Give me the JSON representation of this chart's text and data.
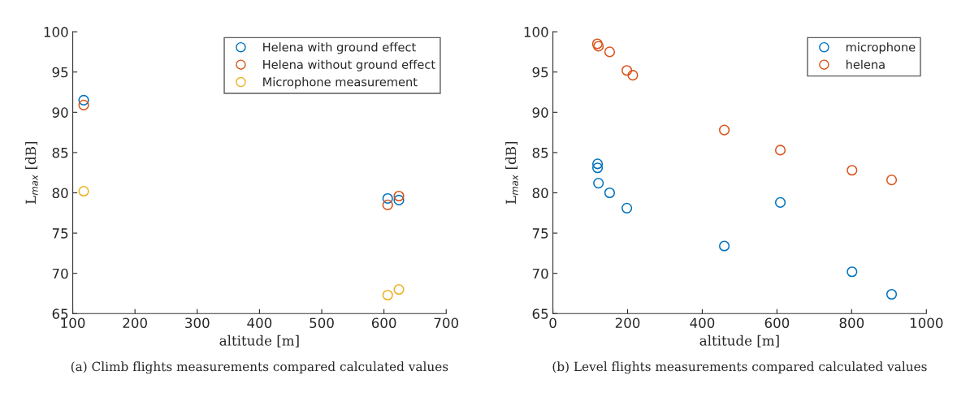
{
  "chart_data": [
    {
      "type": "scatter",
      "xlabel": "altitude [m]",
      "ylabel": "L$_{max}$ [dB]",
      "xlim": [
        100,
        700
      ],
      "xticks": [
        100,
        200,
        300,
        400,
        500,
        600,
        700
      ],
      "ylim": [
        65,
        100
      ],
      "yticks": [
        65,
        70,
        75,
        80,
        85,
        90,
        95,
        100
      ],
      "legend": "top right",
      "grid": false,
      "marker": "circle",
      "annotations": [
        "(a) Climb flights measurements compared calculated values"
      ],
      "series": [
        {
          "name": "Helena with ground effect",
          "color": "#0072bd",
          "x": [
            117.6,
            606,
            624
          ],
          "values": [
            91.5,
            79.3,
            79.1
          ]
        },
        {
          "name": "Helena without ground effect",
          "color": "#d95319",
          "x": [
            117.6,
            606,
            624
          ],
          "values": [
            90.9,
            78.5,
            79.6
          ]
        },
        {
          "name": "Microphone measurement",
          "color": "#edb120",
          "x": [
            117.6,
            606,
            624
          ],
          "values": [
            80.2,
            67.3,
            68.0
          ]
        }
      ]
    },
    {
      "type": "scatter",
      "xlabel": "altitude [m]",
      "ylabel": "L$_{max}$ [dB]",
      "xlim": [
        0,
        1000
      ],
      "xticks": [
        0,
        200,
        400,
        600,
        800,
        1000
      ],
      "ylim": [
        65,
        100
      ],
      "yticks": [
        65,
        70,
        75,
        80,
        85,
        90,
        95,
        100
      ],
      "legend": "top right",
      "grid": false,
      "marker": "circle",
      "annotations": [
        "(b) Level flights measurements compared calculated values"
      ],
      "series": [
        {
          "name": "microphone",
          "color": "#0072bd",
          "x": [
            119.6,
            119.6,
            122,
            152,
            198,
            459,
            609,
            801,
            907
          ],
          "values": [
            83.6,
            83.1,
            81.2,
            80.0,
            78.1,
            73.4,
            78.8,
            70.2,
            67.4
          ]
        },
        {
          "name": "helena",
          "color": "#d95319",
          "x": [
            119,
            122,
            152,
            198,
            214,
            459,
            609,
            801,
            907
          ],
          "values": [
            98.5,
            98.2,
            97.5,
            95.2,
            94.6,
            87.8,
            85.3,
            82.8,
            81.6
          ]
        }
      ]
    }
  ]
}
